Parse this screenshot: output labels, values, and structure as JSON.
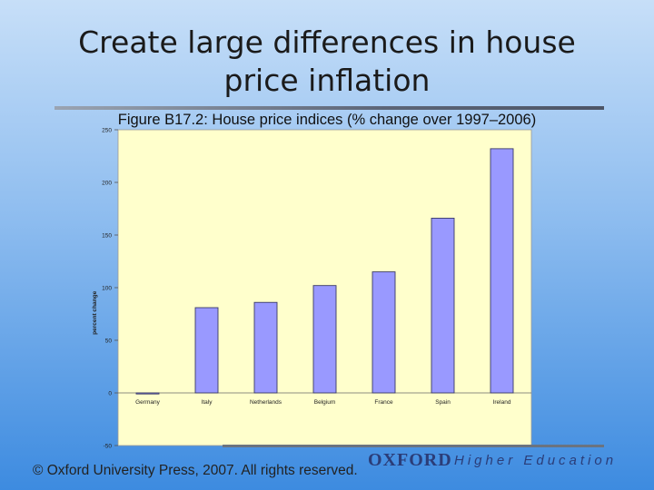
{
  "slide": {
    "title": "Create large differences in house price inflation",
    "figure_caption": "Figure B17.2: House price indices (% change over 1997–2006)",
    "copyright": "© Oxford University Press, 2007. All rights reserved.",
    "brand_oxford": "OXFORD",
    "brand_he": "Higher Education"
  },
  "colors": {
    "plot_background": "#ffffcc",
    "bar_fill": "#9999ff",
    "bar_stroke": "#3a3a66"
  },
  "chart_data": {
    "type": "bar",
    "title": "",
    "xlabel": "",
    "ylabel": "percent change",
    "categories": [
      "Germany",
      "Italy",
      "Netherlands",
      "Belgium",
      "France",
      "Spain",
      "Ireland"
    ],
    "values": [
      -1,
      81,
      86,
      102,
      115,
      166,
      232
    ],
    "ylim": [
      -50,
      250
    ],
    "yticks": [
      -50,
      0,
      50,
      100,
      150,
      200,
      250
    ],
    "grid": true,
    "legend": "none"
  }
}
